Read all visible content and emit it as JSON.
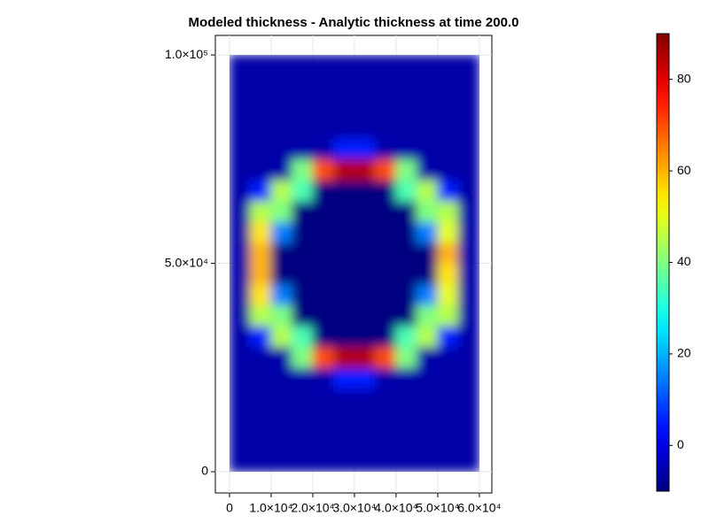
{
  "chart_data": {
    "type": "heatmap",
    "title": "Modeled thickness - Analytic thickness at time 200.0",
    "colormap": "jet",
    "grid": true,
    "xlim": [
      -3400,
      63000
    ],
    "ylim": [
      -5100,
      104700
    ],
    "xticks": [
      0,
      {
        "value": 10000,
        "label": "1.0×10⁴"
      },
      {
        "value": 20000,
        "label": "2.0×10⁴"
      },
      {
        "value": 30000,
        "label": "3.0×10⁴"
      },
      {
        "value": 40000,
        "label": "4.0×10⁴"
      },
      {
        "value": 50000,
        "label": "5.0×10⁴"
      },
      {
        "value": 60000,
        "label": "6.0×10⁴"
      }
    ],
    "yticks": [
      0,
      {
        "value": 50000,
        "label": "5.0×10⁴"
      },
      {
        "value": 100000,
        "label": "1.0×10⁵"
      }
    ],
    "x_edges": [
      0,
      5000,
      10000,
      15000,
      20000,
      25000,
      30000,
      35000,
      40000,
      45000,
      50000,
      55000,
      60000
    ],
    "y_edges": [
      0,
      5000,
      10000,
      15000,
      20000,
      25000,
      30000,
      35000,
      40000,
      45000,
      50000,
      55000,
      60000,
      65000,
      70000,
      75000,
      80000,
      85000,
      90000,
      95000,
      100000
    ],
    "z": [
      [
        -6,
        -6,
        -6,
        -6,
        -6,
        -6,
        -6,
        -6,
        -6,
        -6,
        -6,
        -6
      ],
      [
        -6,
        -6,
        -6,
        -6,
        -6,
        -6,
        -6,
        -6,
        -6,
        -6,
        -6,
        -6
      ],
      [
        -6,
        -6,
        -6,
        -6,
        -6,
        -6,
        -6,
        -6,
        -6,
        -6,
        -6,
        -6
      ],
      [
        -6,
        -6,
        -6,
        -6,
        -6,
        -6,
        -6,
        -6,
        -6,
        -6,
        -6,
        -6
      ],
      [
        -6,
        -6,
        -6,
        -6,
        -6,
        5,
        5,
        -6,
        -6,
        -6,
        -6,
        -6
      ],
      [
        -6,
        -6,
        -6,
        40,
        70,
        85,
        85,
        70,
        40,
        -6,
        -6,
        -6
      ],
      [
        -6,
        5,
        45,
        35,
        -10,
        -10,
        -10,
        -10,
        35,
        45,
        5,
        -6
      ],
      [
        -6,
        45,
        40,
        -10,
        -10,
        -10,
        -10,
        -10,
        -10,
        40,
        45,
        -6
      ],
      [
        -6,
        55,
        15,
        -10,
        -10,
        -10,
        -10,
        -10,
        -10,
        15,
        50,
        -6
      ],
      [
        -6,
        60,
        -10,
        -10,
        -10,
        -10,
        -10,
        -10,
        -10,
        -10,
        55,
        -6
      ],
      [
        -6,
        60,
        -10,
        -10,
        -10,
        -10,
        -10,
        -10,
        -10,
        -10,
        60,
        -6
      ],
      [
        -6,
        55,
        15,
        -10,
        -10,
        -10,
        -10,
        -10,
        -10,
        15,
        50,
        -6
      ],
      [
        -6,
        45,
        40,
        -10,
        -10,
        -10,
        -10,
        -10,
        -10,
        40,
        45,
        -6
      ],
      [
        -6,
        5,
        45,
        35,
        -10,
        -10,
        -10,
        -10,
        35,
        45,
        5,
        -6
      ],
      [
        -6,
        -6,
        -6,
        40,
        70,
        85,
        85,
        70,
        40,
        -6,
        -6,
        -6
      ],
      [
        -6,
        -6,
        -6,
        -6,
        -6,
        5,
        5,
        -6,
        -6,
        -6,
        -6,
        -6
      ],
      [
        -6,
        -6,
        -6,
        -6,
        -6,
        -6,
        -6,
        -6,
        -6,
        -6,
        -6,
        -6
      ],
      [
        -6,
        -6,
        -6,
        -6,
        -6,
        -6,
        -6,
        -6,
        -6,
        -6,
        -6,
        -6
      ],
      [
        -6,
        -6,
        -6,
        -6,
        -6,
        -6,
        -6,
        -6,
        -6,
        -6,
        -6,
        -6
      ],
      [
        -6,
        -6,
        -6,
        -6,
        -6,
        -6,
        -6,
        -6,
        -6,
        -6,
        -6,
        -6
      ]
    ],
    "colorbar": {
      "clim": [
        -10,
        90
      ],
      "ticks": [
        0,
        20,
        40,
        60,
        80
      ]
    }
  }
}
